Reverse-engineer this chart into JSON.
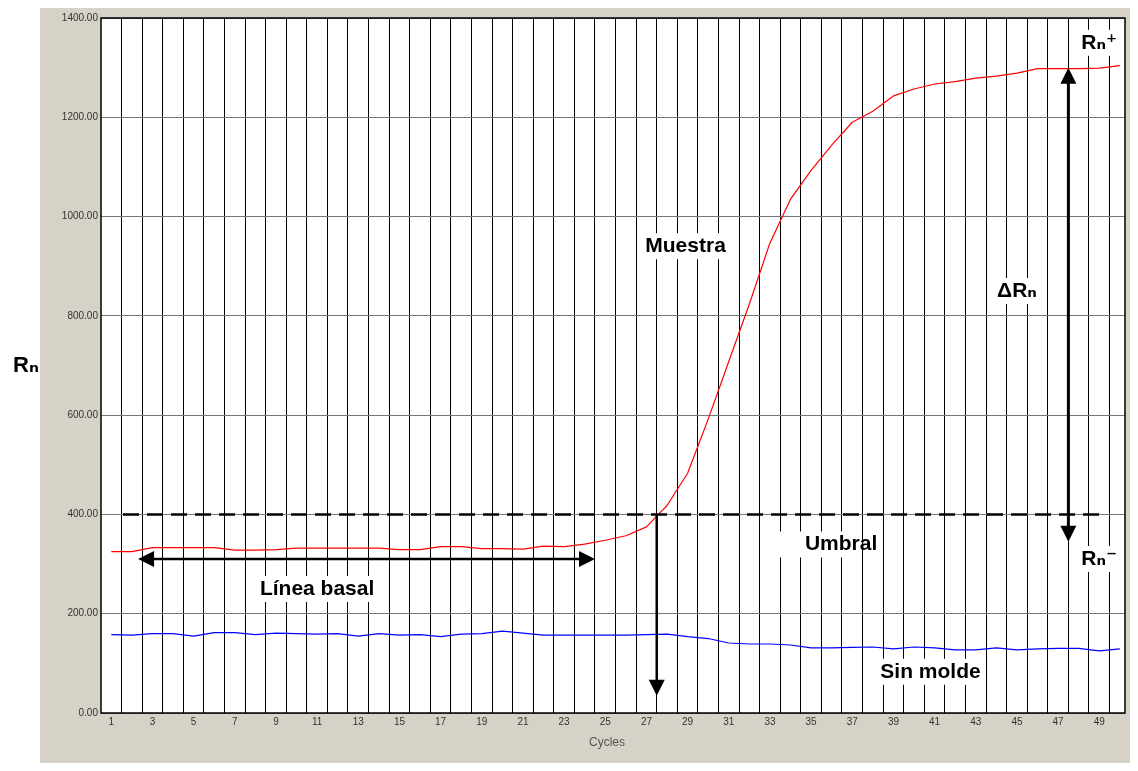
{
  "chart_data": {
    "type": "line",
    "xlabel": "Cycles",
    "ylabel": "Rₙ",
    "x": [
      1,
      2,
      3,
      4,
      5,
      6,
      7,
      8,
      9,
      10,
      11,
      12,
      13,
      14,
      15,
      16,
      17,
      18,
      19,
      20,
      21,
      22,
      23,
      24,
      25,
      26,
      27,
      28,
      29,
      30,
      31,
      32,
      33,
      34,
      35,
      36,
      37,
      38,
      39,
      40,
      41,
      42,
      43,
      44,
      45,
      46,
      47,
      48,
      49,
      50
    ],
    "series": [
      {
        "name": "Muestra",
        "color": "#ff0000",
        "values": [
          325,
          325,
          333,
          333,
          333,
          333,
          328,
          328,
          329,
          332,
          332,
          332,
          332,
          332,
          329,
          329,
          335,
          335,
          331,
          331,
          330,
          336,
          335,
          340,
          348,
          357,
          375,
          418,
          483,
          592,
          708,
          824,
          947,
          1035,
          1093,
          1144,
          1190,
          1212,
          1243,
          1257,
          1267,
          1272,
          1279,
          1283,
          1289,
          1298,
          1298,
          1298,
          1299,
          1304
        ]
      },
      {
        "name": "Sin molde",
        "color": "#0000ff",
        "values": [
          158,
          157,
          160,
          160,
          155,
          162,
          162,
          158,
          161,
          160,
          159,
          160,
          155,
          160,
          157,
          158,
          154,
          159,
          160,
          165,
          161,
          157,
          157,
          157,
          157,
          157,
          158,
          159,
          154,
          150,
          141,
          139,
          139,
          137,
          131,
          131,
          132,
          133,
          129,
          133,
          131,
          127,
          127,
          131,
          127,
          129,
          130,
          130,
          125,
          129
        ]
      }
    ],
    "xlim": [
      0.5,
      50.25
    ],
    "xticks": [
      1,
      {
        "value": 1.5,
        "label": null
      },
      3,
      {
        "value": 2.5,
        "label": null
      },
      {
        "value": 3.5,
        "label": null
      },
      5,
      {
        "value": 4.5,
        "label": null
      },
      {
        "value": 5.5,
        "label": null
      },
      7,
      {
        "value": 6.5,
        "label": null
      },
      {
        "value": 7.5,
        "label": null
      },
      9,
      {
        "value": 8.5,
        "label": null
      },
      {
        "value": 9.5,
        "label": null
      },
      11,
      {
        "value": 10.5,
        "label": null
      },
      {
        "value": 11.5,
        "label": null
      },
      13,
      {
        "value": 12.5,
        "label": null
      },
      {
        "value": 13.5,
        "label": null
      },
      15,
      {
        "value": 14.5,
        "label": null
      },
      {
        "value": 15.5,
        "label": null
      },
      17,
      {
        "value": 16.5,
        "label": null
      },
      {
        "value": 17.5,
        "label": null
      },
      19,
      {
        "value": 18.5,
        "label": null
      },
      {
        "value": 19.5,
        "label": null
      },
      21,
      {
        "value": 20.5,
        "label": null
      },
      {
        "value": 21.5,
        "label": null
      },
      23,
      {
        "value": 22.5,
        "label": null
      },
      {
        "value": 23.5,
        "label": null
      },
      25,
      {
        "value": 24.5,
        "label": null
      },
      {
        "value": 25.5,
        "label": null
      },
      27,
      {
        "value": 26.5,
        "label": null
      },
      {
        "value": 27.5,
        "label": null
      },
      29,
      {
        "value": 28.5,
        "label": null
      },
      {
        "value": 29.5,
        "label": null
      },
      31,
      {
        "value": 30.5,
        "label": null
      },
      {
        "value": 31.5,
        "label": null
      },
      33,
      {
        "value": 32.5,
        "label": null
      },
      {
        "value": 33.5,
        "label": null
      },
      35,
      {
        "value": 34.5,
        "label": null
      },
      {
        "value": 35.5,
        "label": null
      },
      37,
      {
        "value": 36.5,
        "label": null
      },
      {
        "value": 37.5,
        "label": null
      },
      39,
      {
        "value": 38.5,
        "label": null
      },
      {
        "value": 39.5,
        "label": null
      },
      41,
      {
        "value": 40.5,
        "label": null
      },
      {
        "value": 41.5,
        "label": null
      },
      43,
      {
        "value": 42.5,
        "label": null
      },
      {
        "value": 43.5,
        "label": null
      },
      45,
      {
        "value": 44.5,
        "label": null
      },
      {
        "value": 45.5,
        "label": null
      },
      47,
      {
        "value": 46.5,
        "label": null
      },
      {
        "value": 47.5,
        "label": null
      },
      49,
      {
        "value": 48.5,
        "label": null
      },
      {
        "value": 49.5,
        "label": null
      }
    ],
    "ylim": [
      0,
      1400
    ],
    "yticks": [
      {
        "value": 0,
        "label": "0.00"
      },
      {
        "value": 200,
        "label": "200.00"
      },
      {
        "value": 400,
        "label": "400.00"
      },
      {
        "value": 600,
        "label": "600.00"
      },
      {
        "value": 800,
        "label": "800.00"
      },
      {
        "value": 1000,
        "label": "1000.00"
      },
      {
        "value": 1200,
        "label": "1200.00"
      },
      {
        "value": 1400,
        "label": "1400.00"
      }
    ],
    "grid": true,
    "legend": false,
    "marker": "none",
    "ref_lines": [
      {
        "axis": "y",
        "value": 400,
        "label": "Umbral",
        "color": "#000000",
        "line_style": "dashed"
      }
    ],
    "annotations": [
      "Línea basal",
      "ΔRₙ",
      "Rₙ⁺",
      "Rₙ⁻"
    ]
  }
}
